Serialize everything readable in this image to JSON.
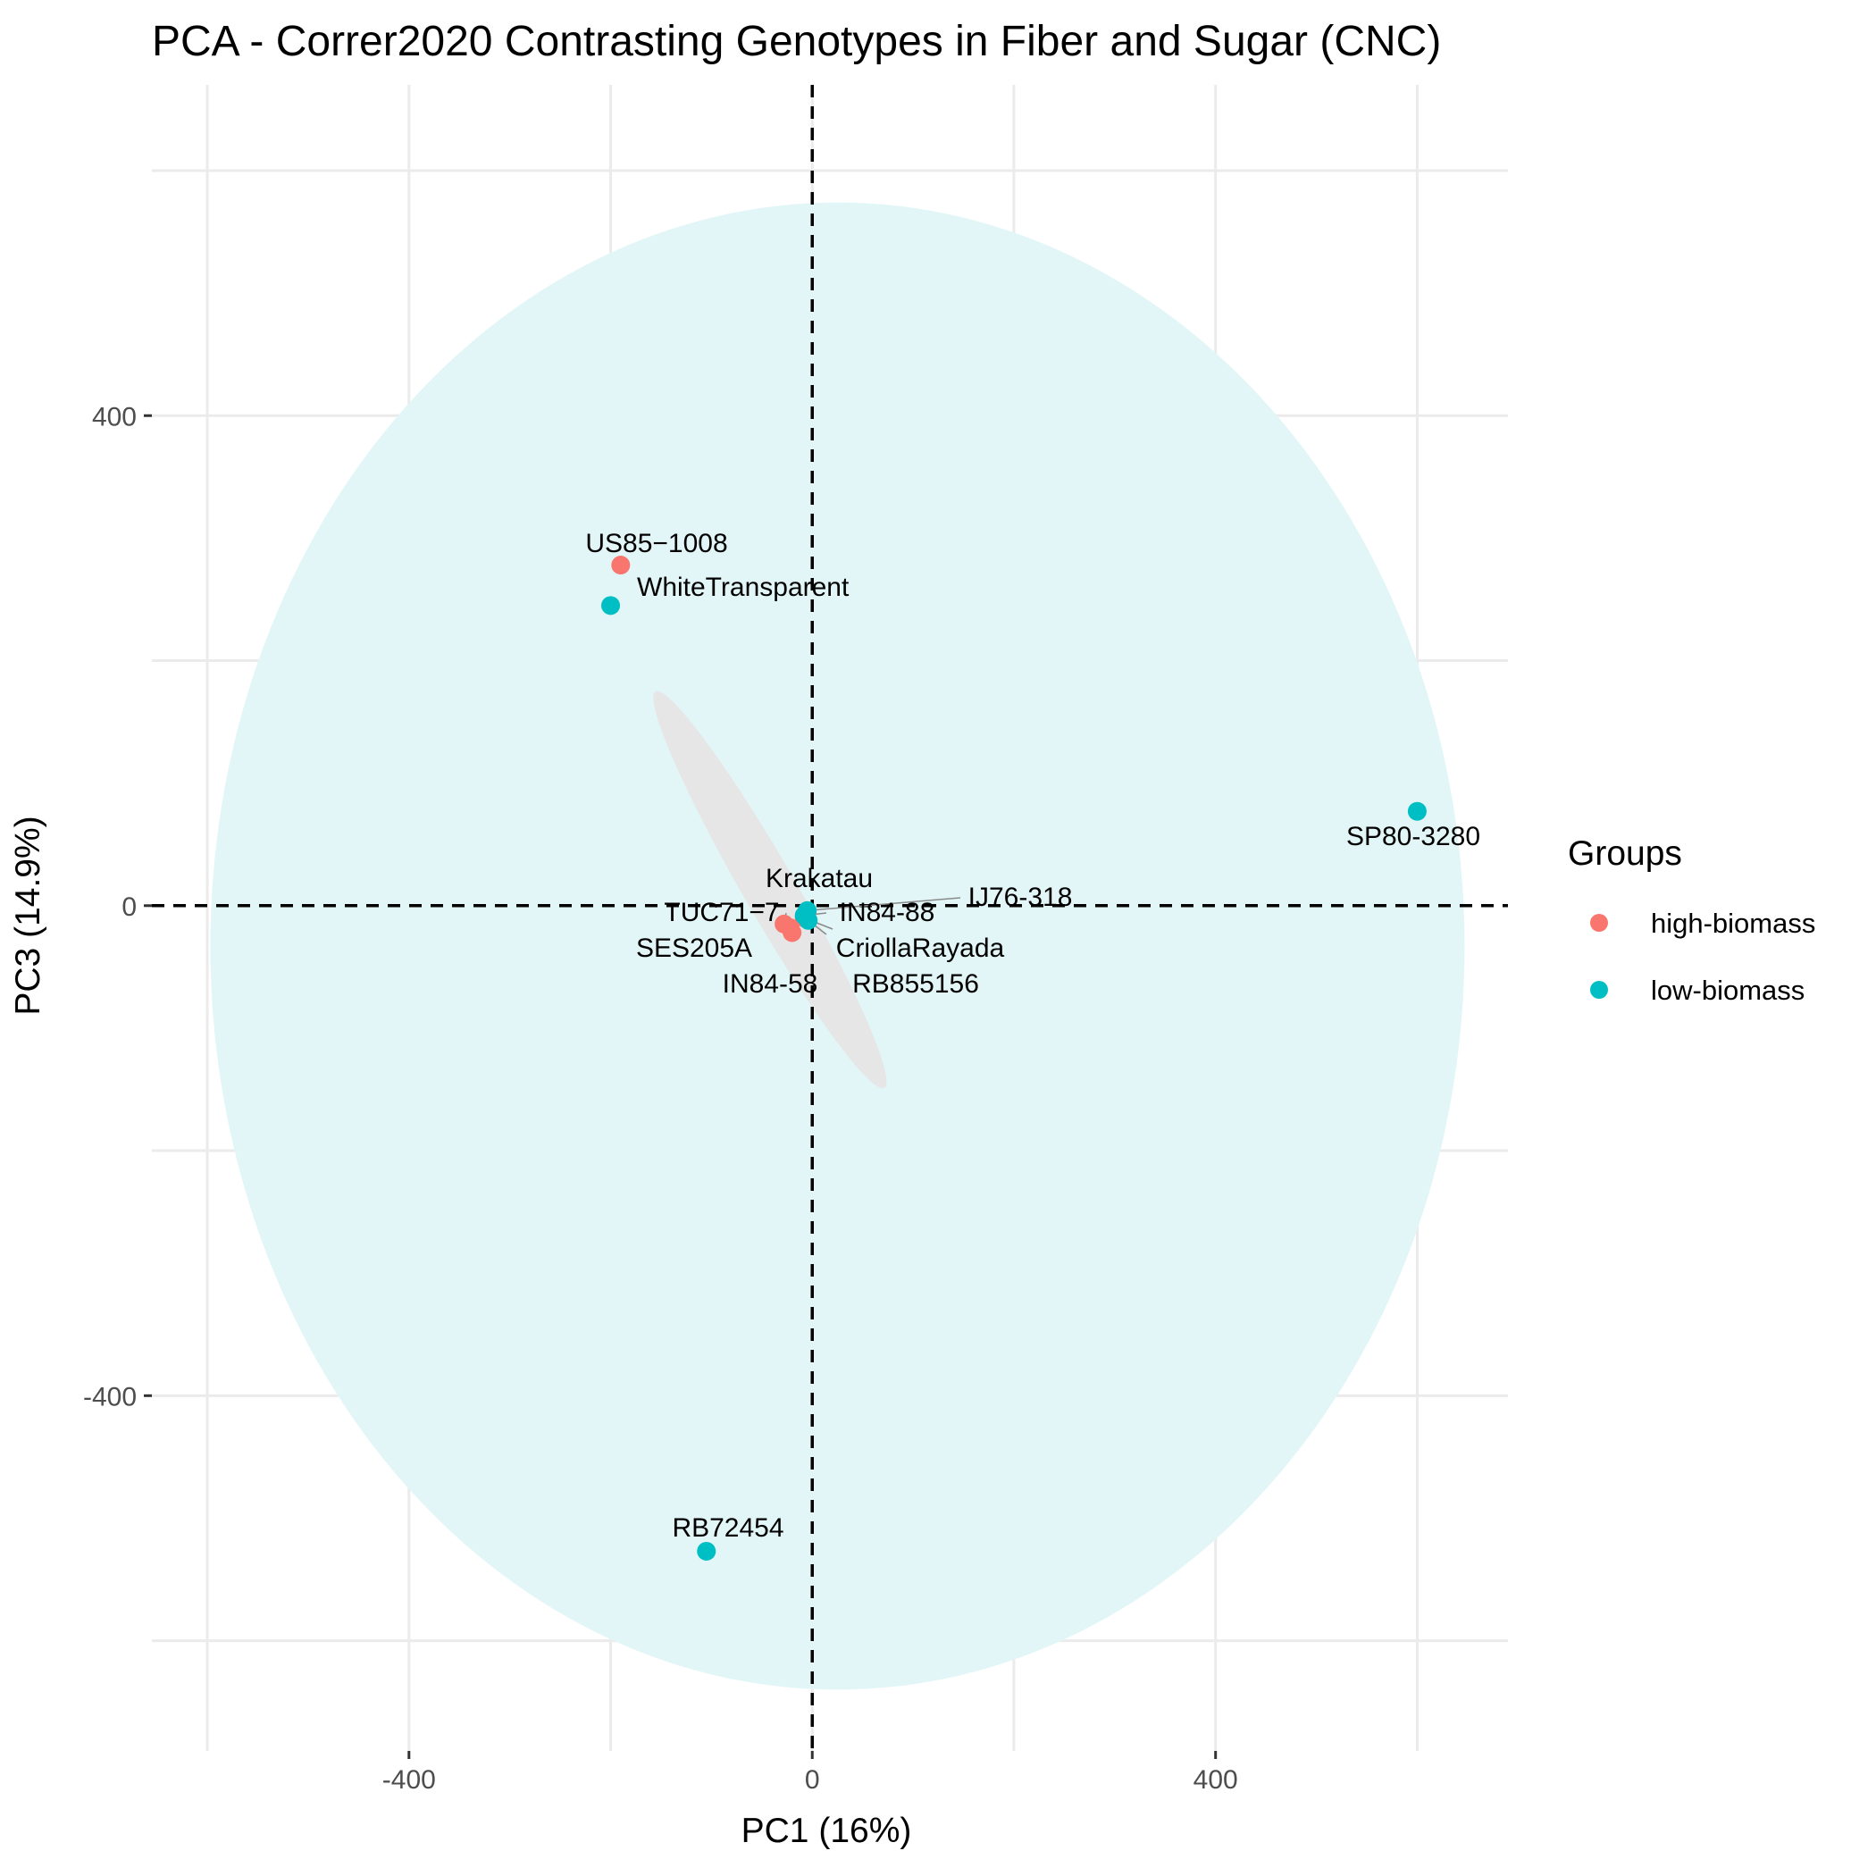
{
  "chart_data": {
    "type": "scatter",
    "title": "PCA - Correr2020 Contrasting Genotypes in Fiber and Sugar (CNC)",
    "xlabel": "PC1 (16%)",
    "ylabel": "PC3 (14.9%)",
    "xlim": [
      -655,
      690
    ],
    "ylim": [
      -690,
      670
    ],
    "xticks": [
      -400,
      0,
      400
    ],
    "yticks": [
      400,
      0,
      -400
    ],
    "grid": true,
    "reference_lines": {
      "x": 0,
      "y": 0
    },
    "legend": {
      "title": "Groups",
      "position": "right"
    },
    "series": [
      {
        "name": "high-biomass",
        "color": "#F8766D",
        "points": [
          {
            "label": "US85−1008",
            "x": -190,
            "y": 278
          },
          {
            "label": "Krakatau",
            "x": -5,
            "y": -5
          },
          {
            "label": "TUC71−7",
            "x": -28,
            "y": -15
          },
          {
            "label": "SES205A",
            "x": -22,
            "y": -18
          },
          {
            "label": "IN84-58",
            "x": -20,
            "y": -22
          },
          {
            "label": "CriollaRayada",
            "x": -8,
            "y": -10
          }
        ]
      },
      {
        "name": "low-biomass",
        "color": "#00BFC4",
        "points": [
          {
            "label": "WhiteTransparent",
            "x": -200,
            "y": 245
          },
          {
            "label": "SP80-3280",
            "x": 600,
            "y": 77
          },
          {
            "label": "RB72454",
            "x": -105,
            "y": -527
          },
          {
            "label": "IN84-88",
            "x": -8,
            "y": -8
          },
          {
            "label": "IJ76-318",
            "x": -5,
            "y": -4
          },
          {
            "label": "RB855156",
            "x": -4,
            "y": -12
          }
        ]
      }
    ],
    "ellipses": [
      {
        "group": "low-biomass",
        "color": "#00BFC4",
        "center": [
          25,
          -33
        ],
        "rx": 622,
        "ry": 607,
        "angle_deg": 0
      },
      {
        "group": "high-biomass",
        "color": "#F8766D",
        "center": [
          -42,
          13
        ],
        "rx": 227,
        "ry": 26,
        "angle_deg": 60
      }
    ]
  }
}
